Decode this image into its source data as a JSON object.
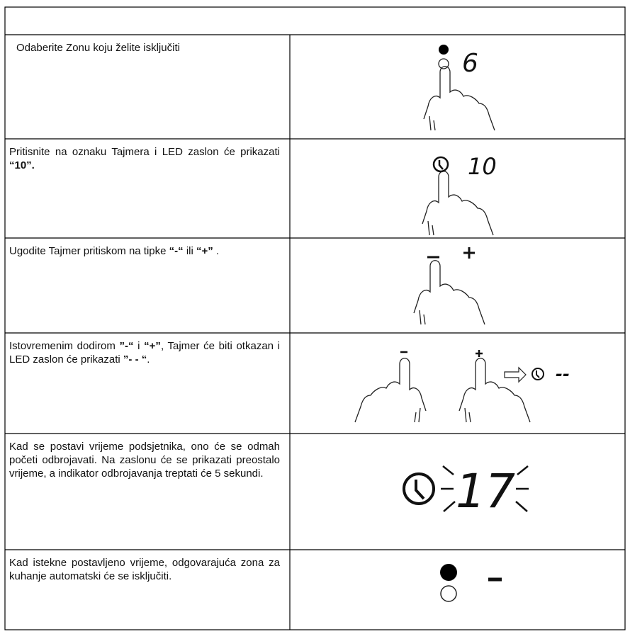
{
  "table": {
    "rows": [
      {
        "parts": [
          {
            "text": "Odaberite Zonu koju želite isključiti",
            "bold": false
          }
        ],
        "display": "6"
      },
      {
        "parts": [
          {
            "text": "Pritisnite na oznaku Tajmera i LED zaslon će prikazati ",
            "bold": false
          },
          {
            "text": "“10”.",
            "bold": true
          }
        ],
        "display": "10"
      },
      {
        "parts": [
          {
            "text": "Ugodite Tajmer pritiskom na tipke ",
            "bold": false
          },
          {
            "text": "“-“",
            "bold": true
          },
          {
            "text": " ili ",
            "bold": false
          },
          {
            "text": "“+”",
            "bold": true
          },
          {
            "text": " .",
            "bold": false
          }
        ]
      },
      {
        "parts": [
          {
            "text": "Istovremenim dodirom ",
            "bold": false
          },
          {
            "text": "”-“",
            "bold": true
          },
          {
            "text": " i ",
            "bold": false
          },
          {
            "text": "“+”",
            "bold": true
          },
          {
            "text": ", Tajmer će biti otkazan i LED zaslon će prikazati ",
            "bold": false
          },
          {
            "text": "”- - “",
            "bold": true
          },
          {
            "text": ".",
            "bold": false
          }
        ],
        "display": "--"
      },
      {
        "parts": [
          {
            "text": "Kad se postavi vrijeme podsjetnika, ono će se odmah početi odbrojavati. Na zaslonu će se prikazati preostalo vrijeme, a indikator odbrojavanja treptati će 5 sekundi.",
            "bold": false
          }
        ],
        "display": "17"
      },
      {
        "parts": [
          {
            "text": "Kad istekne postavljeno vrijeme, odgovarajuća zona za kuhanje automatski će se isključiti.",
            "bold": false
          }
        ]
      }
    ]
  }
}
